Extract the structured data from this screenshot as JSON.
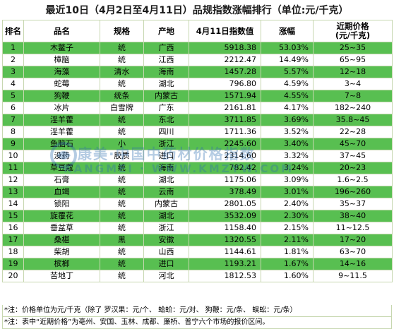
{
  "title": "最近10日（4月2日至4月11日）品规指数涨幅排行（单位:元/千克）",
  "headers": [
    "排名",
    "品名",
    "规格",
    "产地",
    "4月11日指数值",
    "涨幅",
    "近期价格\n(元/千克)"
  ],
  "rows": [
    [
      "1",
      "木鳖子",
      "统",
      "广西",
      "5918.38",
      "53.03%",
      "25~35"
    ],
    [
      "2",
      "樟脑",
      "统",
      "江西",
      "2212.47",
      "14.49%",
      "65~95"
    ],
    [
      "3",
      "海藻",
      "清水",
      "海南",
      "1457.28",
      "5.57%",
      "12~18"
    ],
    [
      "4",
      "蛇莓",
      "统",
      "湖北",
      "796.80",
      "4.59%",
      "3~4"
    ],
    [
      "5",
      "狗鞭",
      "统条",
      "内蒙古",
      "1571.94",
      "4.55%",
      "7~8"
    ],
    [
      "6",
      "冰片",
      "白雪牌",
      "广东",
      "2161.81",
      "4.17%",
      "182~240"
    ],
    [
      "7",
      "淫羊藿",
      "统",
      "东北",
      "3711.85",
      "3.69%",
      "35.8~45"
    ],
    [
      "8",
      "淫羊藿",
      "统",
      "四川",
      "1711.36",
      "3.52%",
      "22~28"
    ],
    [
      "9",
      "鱼脑石",
      "小",
      "浙江",
      "2245.60",
      "3.40%",
      "45~70"
    ],
    [
      "10",
      "没药",
      "胶质",
      "进口",
      "2314.60",
      "3.32%",
      "37~45"
    ],
    [
      "11",
      "草豆蔻",
      "统",
      "海南",
      "782.42",
      "3.24%",
      "20~23"
    ],
    [
      "12",
      "石膏",
      "统",
      "湖北",
      "1175.06",
      "3.09%",
      "1.6~2.5"
    ],
    [
      "13",
      "血竭",
      "统",
      "云南",
      "378.49",
      "3.01%",
      "196~260"
    ],
    [
      "14",
      "锁阳",
      "统",
      "内蒙古",
      "2801.05",
      "2.40%",
      "35~37"
    ],
    [
      "15",
      "旋覆花",
      "统",
      "湖北",
      "3532.09",
      "2.30%",
      "38~40"
    ],
    [
      "16",
      "垂盆草",
      "统",
      "浙江",
      "1158.40",
      "2.15%",
      "11~12.5"
    ],
    [
      "17",
      "桑椹",
      "黑",
      "安徽",
      "1320.55",
      "2.11%",
      "17~20"
    ],
    [
      "18",
      "柴胡",
      "统",
      "山西",
      "1144.61",
      "1.81%",
      "63~70"
    ],
    [
      "19",
      "槟榔",
      "统",
      "进口",
      "1193.21",
      "1.67%",
      "14~16"
    ],
    [
      "20",
      "苦地丁",
      "统",
      "河北",
      "1812.53",
      "1.60%",
      "9~11.5"
    ]
  ],
  "notes": [
    "*注：价格单位为元/千克（除了  罗汉果：元/个、  蛤蚧：元/对、  狗鞭：元/条、  蜈蚣：元/条）",
    "*注：表中“近期价格”为亳州、安国、玉林、成都、廉桥、普宁六个市场的报价区间。"
  ],
  "watermark": {
    "line1": "康美·中国中药材价格指数",
    "line2": "KANGMEI · WWW.KMZYW.COM"
  },
  "colors": {
    "row_highlight": "#58bf51",
    "border": "#c7d7b0",
    "watermark": "#2f6fb0"
  }
}
